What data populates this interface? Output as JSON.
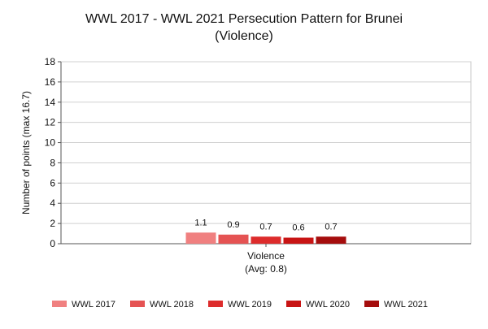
{
  "chart_data": {
    "type": "bar",
    "title_line1": "WWL 2017 - WWL 2021 Persecution Pattern for Brunei",
    "title_line2": "(Violence)",
    "ylabel": "Number of points (max 16.7)",
    "ylim": [
      0,
      18
    ],
    "yticks": [
      "0",
      "2",
      "4",
      "6",
      "8",
      "10",
      "12",
      "14",
      "16",
      "18"
    ],
    "category": "Violence",
    "category_sub": "(Avg: 0.8)",
    "grid": true,
    "legend_position": "bottom",
    "series": [
      {
        "name": "WWL 2017",
        "value": 1.1,
        "label": "1.1",
        "color": "#f08080"
      },
      {
        "name": "WWL 2018",
        "value": 0.9,
        "label": "0.9",
        "color": "#e55353"
      },
      {
        "name": "WWL 2019",
        "value": 0.7,
        "label": "0.7",
        "color": "#dd2c2c"
      },
      {
        "name": "WWL 2020",
        "value": 0.6,
        "label": "0.6",
        "color": "#c81414"
      },
      {
        "name": "WWL 2021",
        "value": 0.7,
        "label": "0.7",
        "color": "#a50d0d"
      }
    ]
  }
}
